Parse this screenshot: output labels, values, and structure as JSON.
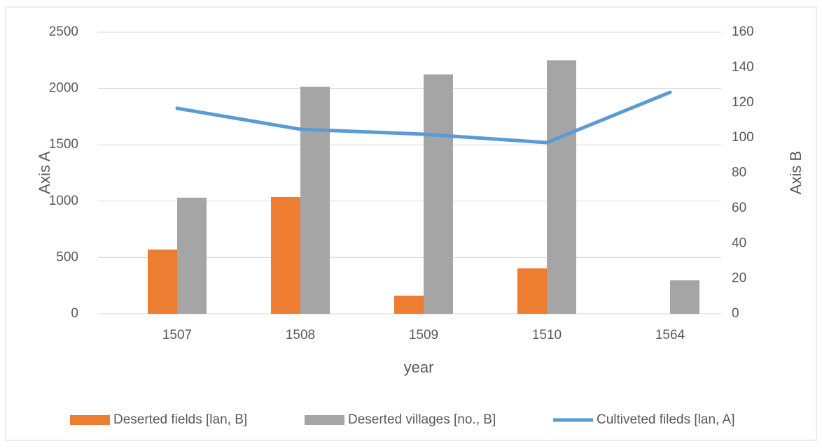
{
  "chart_data": {
    "type": "bar-line",
    "x_label": "year",
    "y_label": "Axis A",
    "y2_label": "Axis B",
    "categories": [
      "1507",
      "1508",
      "1509",
      "1510",
      "1564"
    ],
    "series": [
      {
        "name": "Deserted fields [lan, B]",
        "type": "bar",
        "axis": "y2",
        "color": "#ed7d31",
        "values": [
          36.5,
          66.3,
          10.3,
          25.8,
          null
        ]
      },
      {
        "name": "Deserted villages [no., B]",
        "type": "bar",
        "axis": "y2",
        "color": "#a5a5a5",
        "values": [
          66,
          129,
          136,
          144,
          19
        ]
      },
      {
        "name": "Cultiveted fileds [lan, A]",
        "type": "line",
        "axis": "y",
        "color": "#5b9bd5",
        "values": [
          1824,
          1638,
          1594,
          1520,
          1966
        ]
      }
    ],
    "ylim": [
      0,
      2500
    ],
    "yticks": [
      0,
      500,
      1000,
      1500,
      2000,
      2500
    ],
    "y2lim": [
      0,
      160
    ],
    "y2ticks": [
      0,
      20,
      40,
      60,
      80,
      100,
      120,
      140,
      160
    ],
    "grid": true,
    "legend": "bottom"
  }
}
